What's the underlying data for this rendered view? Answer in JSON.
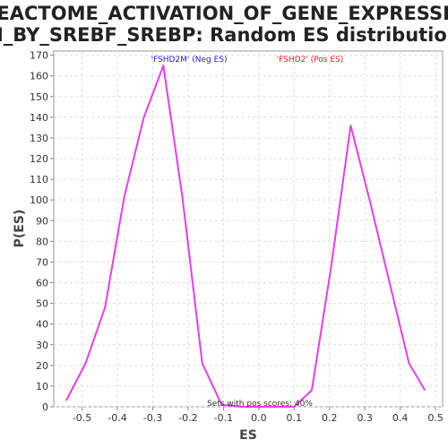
{
  "chart_data": {
    "type": "line",
    "title_line1": "REACTOME_ACTIVATION_OF_GENE_EXPRESSIO",
    "title_line2": "N_BY_SREBF_SREBP: Random ES distribution",
    "xlabel": "ES",
    "ylabel": "P(ES)",
    "xlim": [
      -0.58,
      0.52
    ],
    "ylim": [
      0,
      172
    ],
    "x_ticks": [
      -0.5,
      -0.4,
      -0.3,
      -0.2,
      -0.1,
      0.0,
      0.1,
      0.2,
      0.3,
      0.4,
      0.5
    ],
    "x_tick_labels": [
      "-0.5",
      "-0.4",
      "-0.3",
      "-0.2",
      "-0.1",
      "0.0",
      "0.1",
      "0.2",
      "0.3",
      "0.4",
      "0.5"
    ],
    "y_ticks": [
      0,
      10,
      20,
      30,
      40,
      50,
      60,
      70,
      80,
      90,
      100,
      110,
      120,
      130,
      140,
      150,
      160,
      170
    ],
    "y_tick_labels": [
      "0",
      "10",
      "20",
      "30",
      "40",
      "50",
      "60",
      "70",
      "80",
      "90",
      "100",
      "110",
      "120",
      "130",
      "140",
      "150",
      "160",
      "170"
    ],
    "grid": true,
    "series": [
      {
        "color": "#e83ee8",
        "x": [
          -0.545,
          -0.49,
          -0.435,
          -0.38,
          -0.325,
          -0.27,
          -0.215,
          -0.16,
          -0.105,
          -0.05,
          0.0,
          0.05,
          0.1,
          0.15,
          0.205,
          0.26,
          0.315,
          0.37,
          0.425,
          0.47
        ],
        "y": [
          3,
          21,
          48,
          102,
          140,
          165,
          100,
          21,
          1,
          0,
          0,
          0,
          0,
          8,
          68,
          136,
          99,
          60,
          21,
          8
        ]
      }
    ],
    "annotations": [
      {
        "text": "'FSHD2M' (Neg ES)",
        "color": "#2222cc"
      },
      {
        "text": "'FSHD2' (Pos ES)",
        "color": "#dd2222"
      }
    ],
    "footer": "Sets with pos scores: 40%"
  }
}
